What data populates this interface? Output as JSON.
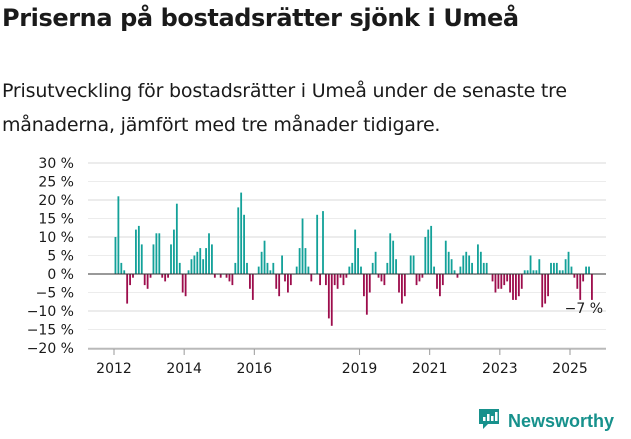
{
  "title": "Priserna på bostadsrätter sjönk i Umeå",
  "subtitle": "Prisutveckling för bostadsrätter i Umeå under de senaste tre månaderna, jämfört med tre månader tidigare.",
  "brand": "Newsworthy",
  "colors": {
    "positive": "#13a199",
    "negative": "#9d0d4c",
    "brand": "#17918c"
  },
  "chart_data": {
    "type": "bar",
    "ylim": [
      -20,
      30
    ],
    "y_ticks": [
      30,
      20,
      10,
      0,
      -10,
      -20
    ],
    "y_ticks_minor": [
      25,
      15,
      5,
      -5,
      -15
    ],
    "y_tick_labels": [
      "30 %",
      "25 %",
      "20 %",
      "15 %",
      "10 %",
      "5 %",
      "0 %",
      "−5 %",
      "−10 %",
      "−15 %",
      "−20 %"
    ],
    "x_tick_labels": [
      {
        "label": "2012",
        "pos": 2012.0
      },
      {
        "label": "2014",
        "pos": 2014.0
      },
      {
        "label": "2016",
        "pos": 2016.0
      },
      {
        "label": "2019",
        "pos": 2019.0
      },
      {
        "label": "2021",
        "pos": 2021.0
      },
      {
        "label": "2023",
        "pos": 2023.0
      },
      {
        "label": "2025",
        "pos": 2025.0
      }
    ],
    "start": "2012-01",
    "frequency": "monthly",
    "values": [
      10,
      21,
      3,
      1,
      -8,
      -3,
      -1,
      12,
      13,
      8,
      -3,
      -4,
      -1,
      8,
      11,
      11,
      -1,
      -2,
      -1,
      8,
      12,
      19,
      3,
      -5,
      -6,
      1,
      4,
      5,
      6,
      7,
      4,
      7,
      11,
      8,
      -1,
      0,
      -1,
      0,
      -1,
      -2,
      -3,
      3,
      18,
      22,
      16,
      3,
      -4,
      -7,
      0,
      2,
      6,
      9,
      3,
      1,
      3,
      -4,
      -6,
      5,
      -2,
      -5,
      -3,
      0,
      2,
      7,
      15,
      7,
      2,
      -2,
      0,
      16,
      -3,
      17,
      -3,
      -12,
      -14,
      -3,
      -4,
      -1,
      -3,
      -1,
      2,
      3,
      12,
      7,
      2,
      -6,
      -11,
      -5,
      3,
      6,
      -1,
      -2,
      -3,
      3,
      11,
      9,
      4,
      -5,
      -8,
      -6,
      0,
      5,
      5,
      -3,
      -2,
      -1,
      10,
      12,
      13,
      2,
      -4,
      -6,
      -3,
      9,
      6,
      4,
      1,
      -1,
      2,
      5,
      6,
      5,
      3,
      0,
      8,
      6,
      3,
      3,
      0,
      -2,
      -5,
      -4,
      -4,
      -3,
      -2,
      -5,
      -7,
      -7,
      -6,
      -4,
      1,
      1,
      5,
      1,
      1,
      4,
      -9,
      -8,
      -6,
      3,
      3,
      3,
      1,
      1,
      4,
      6,
      2,
      -1,
      -4,
      -7,
      -2,
      2,
      2,
      -7
    ],
    "annotation": "−7 %"
  }
}
